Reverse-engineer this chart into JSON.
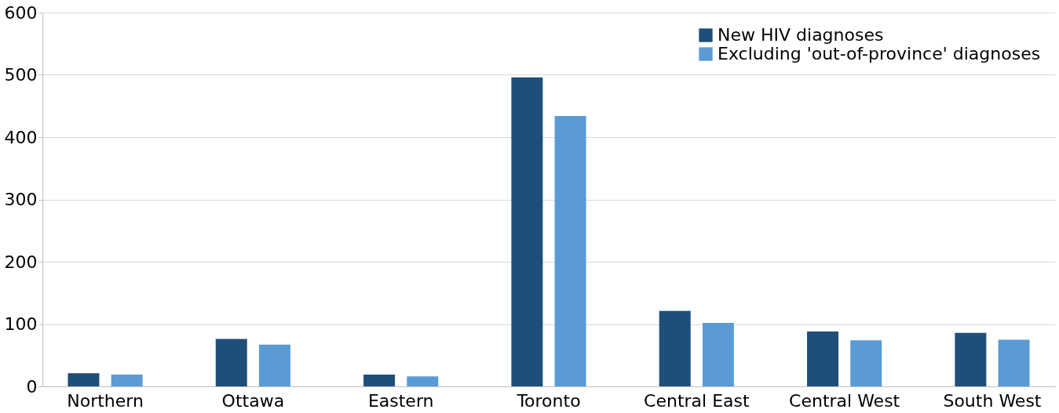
{
  "chart_data": {
    "type": "bar",
    "categories": [
      "Northern",
      "Ottawa",
      "Eastern",
      "Toronto",
      "Central East",
      "Central West",
      "South West"
    ],
    "series": [
      {
        "name": "New HIV diagnoses",
        "color": "#1f4e79",
        "values": [
          21,
          76,
          19,
          496,
          121,
          88,
          86
        ]
      },
      {
        "name": "Excluding 'out-of-province' diagnoses",
        "color": "#5b9bd5",
        "values": [
          19,
          67,
          16,
          434,
          102,
          74,
          75
        ]
      }
    ],
    "ylim": [
      0,
      600
    ],
    "yticks": [
      0,
      100,
      200,
      300,
      400,
      500,
      600
    ],
    "grid": "y",
    "legend": "top right"
  }
}
